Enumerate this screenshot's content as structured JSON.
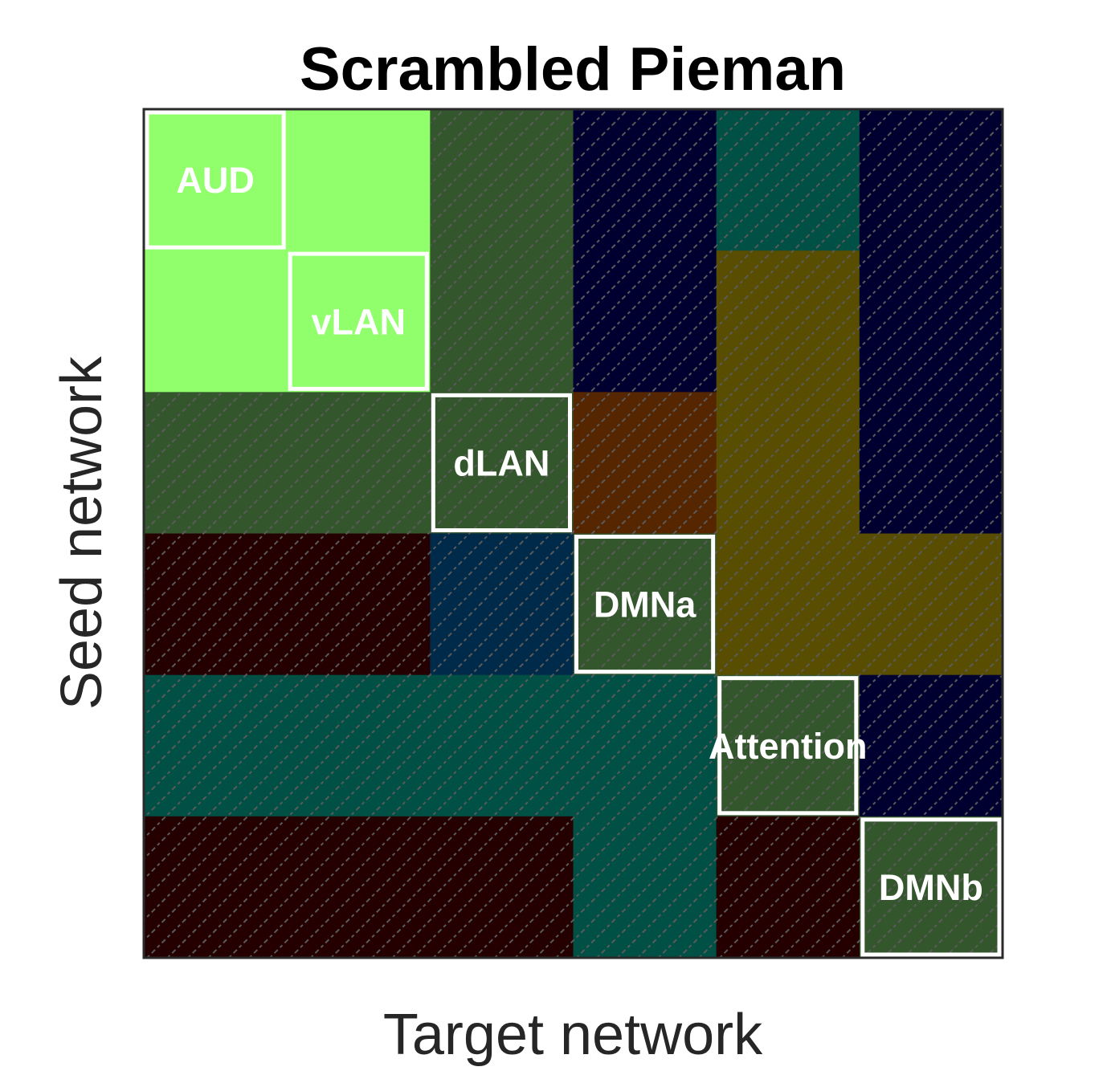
{
  "chart_data": {
    "type": "heatmap",
    "title": "Scrambled Pieman",
    "xlabel": "Target network",
    "ylabel": "Seed network",
    "networks": [
      "AUD",
      "vLAN",
      "dLAN",
      "DMNa",
      "Attention",
      "DMNb"
    ],
    "cell_colors": [
      [
        "#91ff6c",
        "#91ff6c",
        "#34562c",
        "#000030",
        "#005046",
        "#000030"
      ],
      [
        "#91ff6c",
        "#91ff6c",
        "#34562c",
        "#000030",
        "#594d02",
        "#000030"
      ],
      [
        "#34562c",
        "#34562c",
        "#34562c",
        "#562600",
        "#594d02",
        "#000030"
      ],
      [
        "#240000",
        "#240000",
        "#002a4a",
        "#34562c",
        "#594d02",
        "#594d02"
      ],
      [
        "#005046",
        "#005046",
        "#005046",
        "#005046",
        "#34562c",
        "#000030"
      ],
      [
        "#240000",
        "#240000",
        "#240000",
        "#005046",
        "#240000",
        "#34562c"
      ]
    ],
    "hatched": [
      [
        false,
        false,
        true,
        true,
        true,
        true
      ],
      [
        false,
        false,
        true,
        true,
        true,
        true
      ],
      [
        true,
        true,
        true,
        true,
        true,
        true
      ],
      [
        true,
        true,
        true,
        true,
        true,
        true
      ],
      [
        true,
        true,
        true,
        true,
        true,
        true
      ],
      [
        true,
        true,
        true,
        true,
        true,
        true
      ]
    ],
    "highlight": {
      "color": "#ffffff",
      "boxes": [
        "AUD",
        "vLAN",
        "dLAN",
        "DMNa",
        "Attention",
        "DMNb"
      ]
    },
    "colors": {
      "frame": "#2a2a2a",
      "hatch": "#5a5a5a"
    },
    "grid": false
  }
}
